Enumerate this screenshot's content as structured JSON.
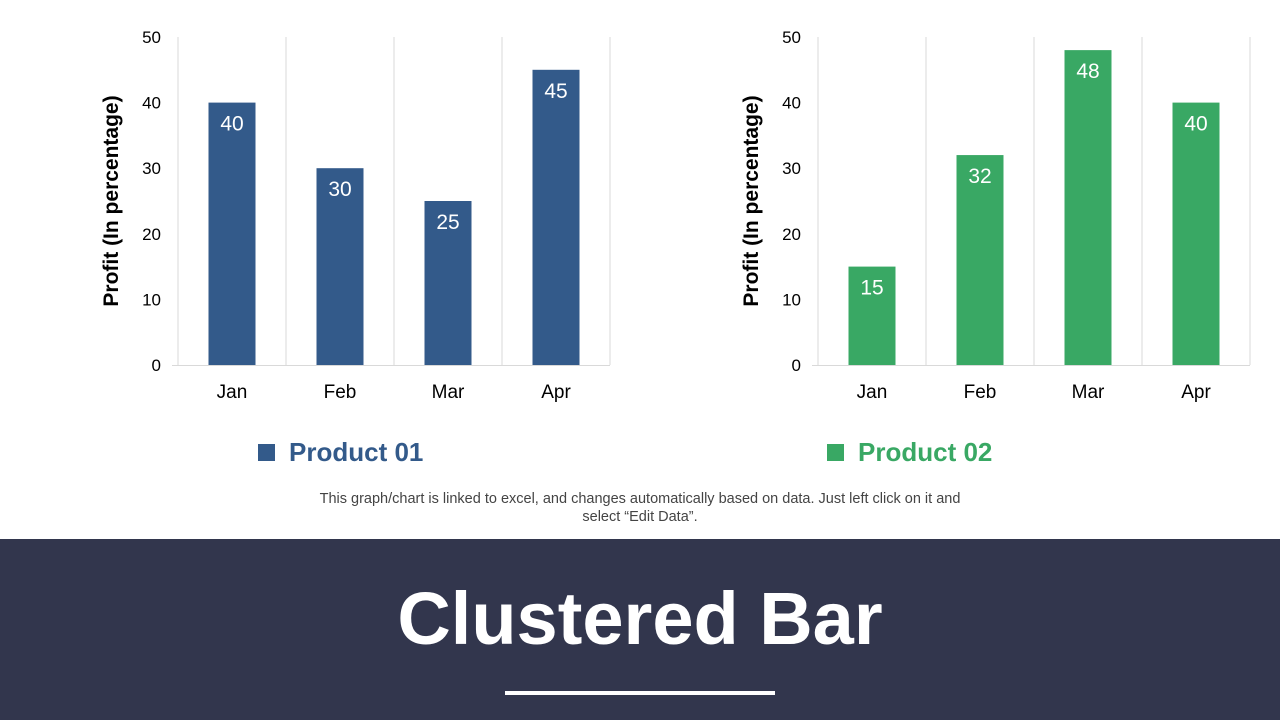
{
  "slide": {
    "title": "Clustered Bar",
    "note": "This graph/chart is linked to excel, and changes automatically  based on data. Just left click on it and select “Edit Data”."
  },
  "chart_data": [
    {
      "type": "bar",
      "categories": [
        "Jan",
        "Feb",
        "Mar",
        "Apr"
      ],
      "series": [
        {
          "name": "Product 01",
          "values": [
            40,
            30,
            25,
            45
          ],
          "color": "#335a8a"
        }
      ],
      "ylabel": "Profit  (In percentage)",
      "ylim": [
        0,
        50
      ],
      "yticks": [
        0,
        10,
        20,
        30,
        40,
        50
      ],
      "grid": "vertical",
      "data_labels": true
    },
    {
      "type": "bar",
      "categories": [
        "Jan",
        "Feb",
        "Mar",
        "Apr"
      ],
      "series": [
        {
          "name": "Product 02",
          "values": [
            15,
            32,
            48,
            40
          ],
          "color": "#39a864"
        }
      ],
      "ylabel": "Profit  (In percentage)",
      "ylim": [
        0,
        50
      ],
      "yticks": [
        0,
        10,
        20,
        30,
        40,
        50
      ],
      "grid": "vertical",
      "data_labels": true
    }
  ]
}
